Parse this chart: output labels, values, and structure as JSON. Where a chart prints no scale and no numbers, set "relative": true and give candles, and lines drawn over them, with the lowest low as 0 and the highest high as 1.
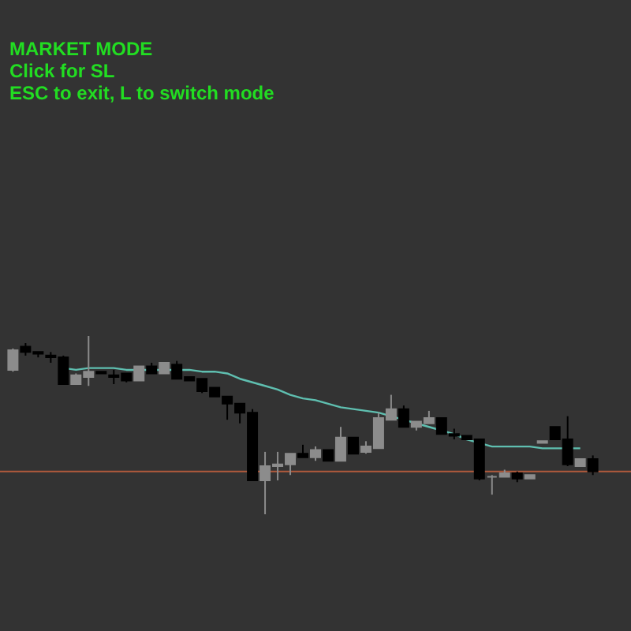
{
  "chart_data": {
    "type": "candlestick",
    "relative": true,
    "annotations": [
      "MARKET MODE",
      "Click for SL",
      "ESC to exit, L to switch mode"
    ],
    "categories": [
      null,
      null,
      null,
      null,
      null,
      null,
      null,
      null,
      null,
      null,
      null,
      null,
      null,
      null,
      null,
      null,
      null,
      null,
      null,
      null,
      null,
      null,
      null,
      null,
      null,
      null,
      null,
      null,
      null,
      null,
      null,
      null,
      null,
      null,
      null,
      null,
      null,
      null,
      null,
      null,
      null,
      null,
      null,
      null,
      null,
      null,
      null
    ],
    "ohlc": [
      [
        0.81,
        0.93,
        0.8,
        0.92
      ],
      [
        0.94,
        0.96,
        0.89,
        0.91
      ],
      [
        0.91,
        0.91,
        0.88,
        0.9
      ],
      [
        0.89,
        0.91,
        0.85,
        0.88
      ],
      [
        0.88,
        0.89,
        0.73,
        0.73
      ],
      [
        0.73,
        0.79,
        0.73,
        0.78
      ],
      [
        0.77,
        1,
        0.72,
        0.8
      ],
      [
        0.8,
        0.8,
        0.79,
        0.79
      ],
      [
        0.78,
        0.81,
        0.73,
        0.77
      ],
      [
        0.79,
        0.79,
        0.74,
        0.75
      ],
      [
        0.75,
        0.83,
        0.75,
        0.83
      ],
      [
        0.83,
        0.85,
        0.79,
        0.79
      ],
      [
        0.79,
        0.85,
        0.79,
        0.85
      ],
      [
        0.84,
        0.86,
        0.76,
        0.76
      ],
      [
        0.77,
        0.77,
        0.75,
        0.75
      ],
      [
        0.76,
        0.76,
        0.68,
        0.69
      ],
      [
        0.71,
        0.71,
        0.66,
        0.66
      ],
      [
        0.66,
        0.66,
        0.53,
        0.62
      ],
      [
        0.62,
        0.62,
        0.51,
        0.57
      ],
      [
        0.57,
        0.59,
        0.19,
        0.19
      ],
      [
        0.19,
        0.35,
        0,
        0.27
      ],
      [
        0.27,
        0.35,
        0.19,
        0.28
      ],
      [
        0.28,
        0.34,
        0.22,
        0.34
      ],
      [
        0.34,
        0.39,
        0.32,
        0.32
      ],
      [
        0.32,
        0.38,
        0.3,
        0.36
      ],
      [
        0.36,
        0.36,
        0.3,
        0.3
      ],
      [
        0.3,
        0.49,
        0.3,
        0.43
      ],
      [
        0.43,
        0.43,
        0.34,
        0.34
      ],
      [
        0.35,
        0.41,
        0.34,
        0.38
      ],
      [
        0.37,
        0.57,
        0.37,
        0.54
      ],
      [
        0.53,
        0.67,
        0.53,
        0.59
      ],
      [
        0.59,
        0.61,
        0.49,
        0.49
      ],
      [
        0.49,
        0.52,
        0.47,
        0.52
      ],
      [
        0.51,
        0.58,
        0.51,
        0.54
      ],
      [
        0.54,
        0.54,
        0.45,
        0.45
      ],
      [
        0.45,
        0.48,
        0.42,
        0.44
      ],
      [
        0.44,
        0.44,
        0.42,
        0.42
      ],
      [
        0.42,
        0.42,
        0.19,
        0.2
      ],
      [
        0.21,
        0.22,
        0.11,
        0.21
      ],
      [
        0.21,
        0.25,
        0.21,
        0.23
      ],
      [
        0.23,
        0.24,
        0.18,
        0.2
      ],
      [
        0.2,
        0.22,
        0.2,
        0.22
      ],
      [
        0.4,
        0.41,
        0.4,
        0.41
      ],
      [
        0.49,
        0.49,
        0.42,
        0.42
      ],
      [
        0.42,
        0.55,
        0.27,
        0.28
      ],
      [
        0.27,
        0.31,
        0.27,
        0.31
      ],
      [
        0.31,
        0.33,
        0.22,
        0.24
      ]
    ],
    "colors": [
      "#8c8c8c",
      "#000000",
      "#000000",
      "#000000",
      "#000000",
      "#8c8c8c",
      "#8c8c8c",
      "#000000",
      "#000000",
      "#000000",
      "#8c8c8c",
      "#000000",
      "#8c8c8c",
      "#000000",
      "#000000",
      "#000000",
      "#000000",
      "#000000",
      "#000000",
      "#000000",
      "#8c8c8c",
      "#8c8c8c",
      "#8c8c8c",
      "#000000",
      "#8c8c8c",
      "#000000",
      "#8c8c8c",
      "#000000",
      "#8c8c8c",
      "#8c8c8c",
      "#8c8c8c",
      "#000000",
      "#8c8c8c",
      "#8c8c8c",
      "#000000",
      "#000000",
      "#000000",
      "#000000",
      "#8c8c8c",
      "#8c8c8c",
      "#000000",
      "#8c8c8c",
      "#8c8c8c",
      "#000000",
      "#000000",
      "#8c8c8c",
      "#000000"
    ],
    "series": [
      {
        "type": "line",
        "color": "#5fbfb0",
        "values": [
          null,
          null,
          null,
          null,
          0.82,
          0.81,
          0.82,
          0.82,
          0.82,
          0.81,
          0.81,
          0.81,
          0.81,
          0.81,
          0.81,
          0.8,
          0.8,
          0.79,
          0.76,
          0.74,
          0.72,
          0.7,
          0.67,
          0.65,
          0.64,
          0.62,
          0.6,
          0.59,
          0.58,
          0.57,
          0.55,
          0.53,
          0.51,
          0.49,
          0.47,
          0.45,
          0.42,
          0.4,
          0.38,
          0.38,
          0.38,
          0.38,
          0.37,
          0.37,
          0.37,
          0.37,
          null
        ]
      }
    ],
    "ref_lines": [
      {
        "axis": "y",
        "value": 0.24,
        "color": "#b05a3c"
      }
    ]
  }
}
